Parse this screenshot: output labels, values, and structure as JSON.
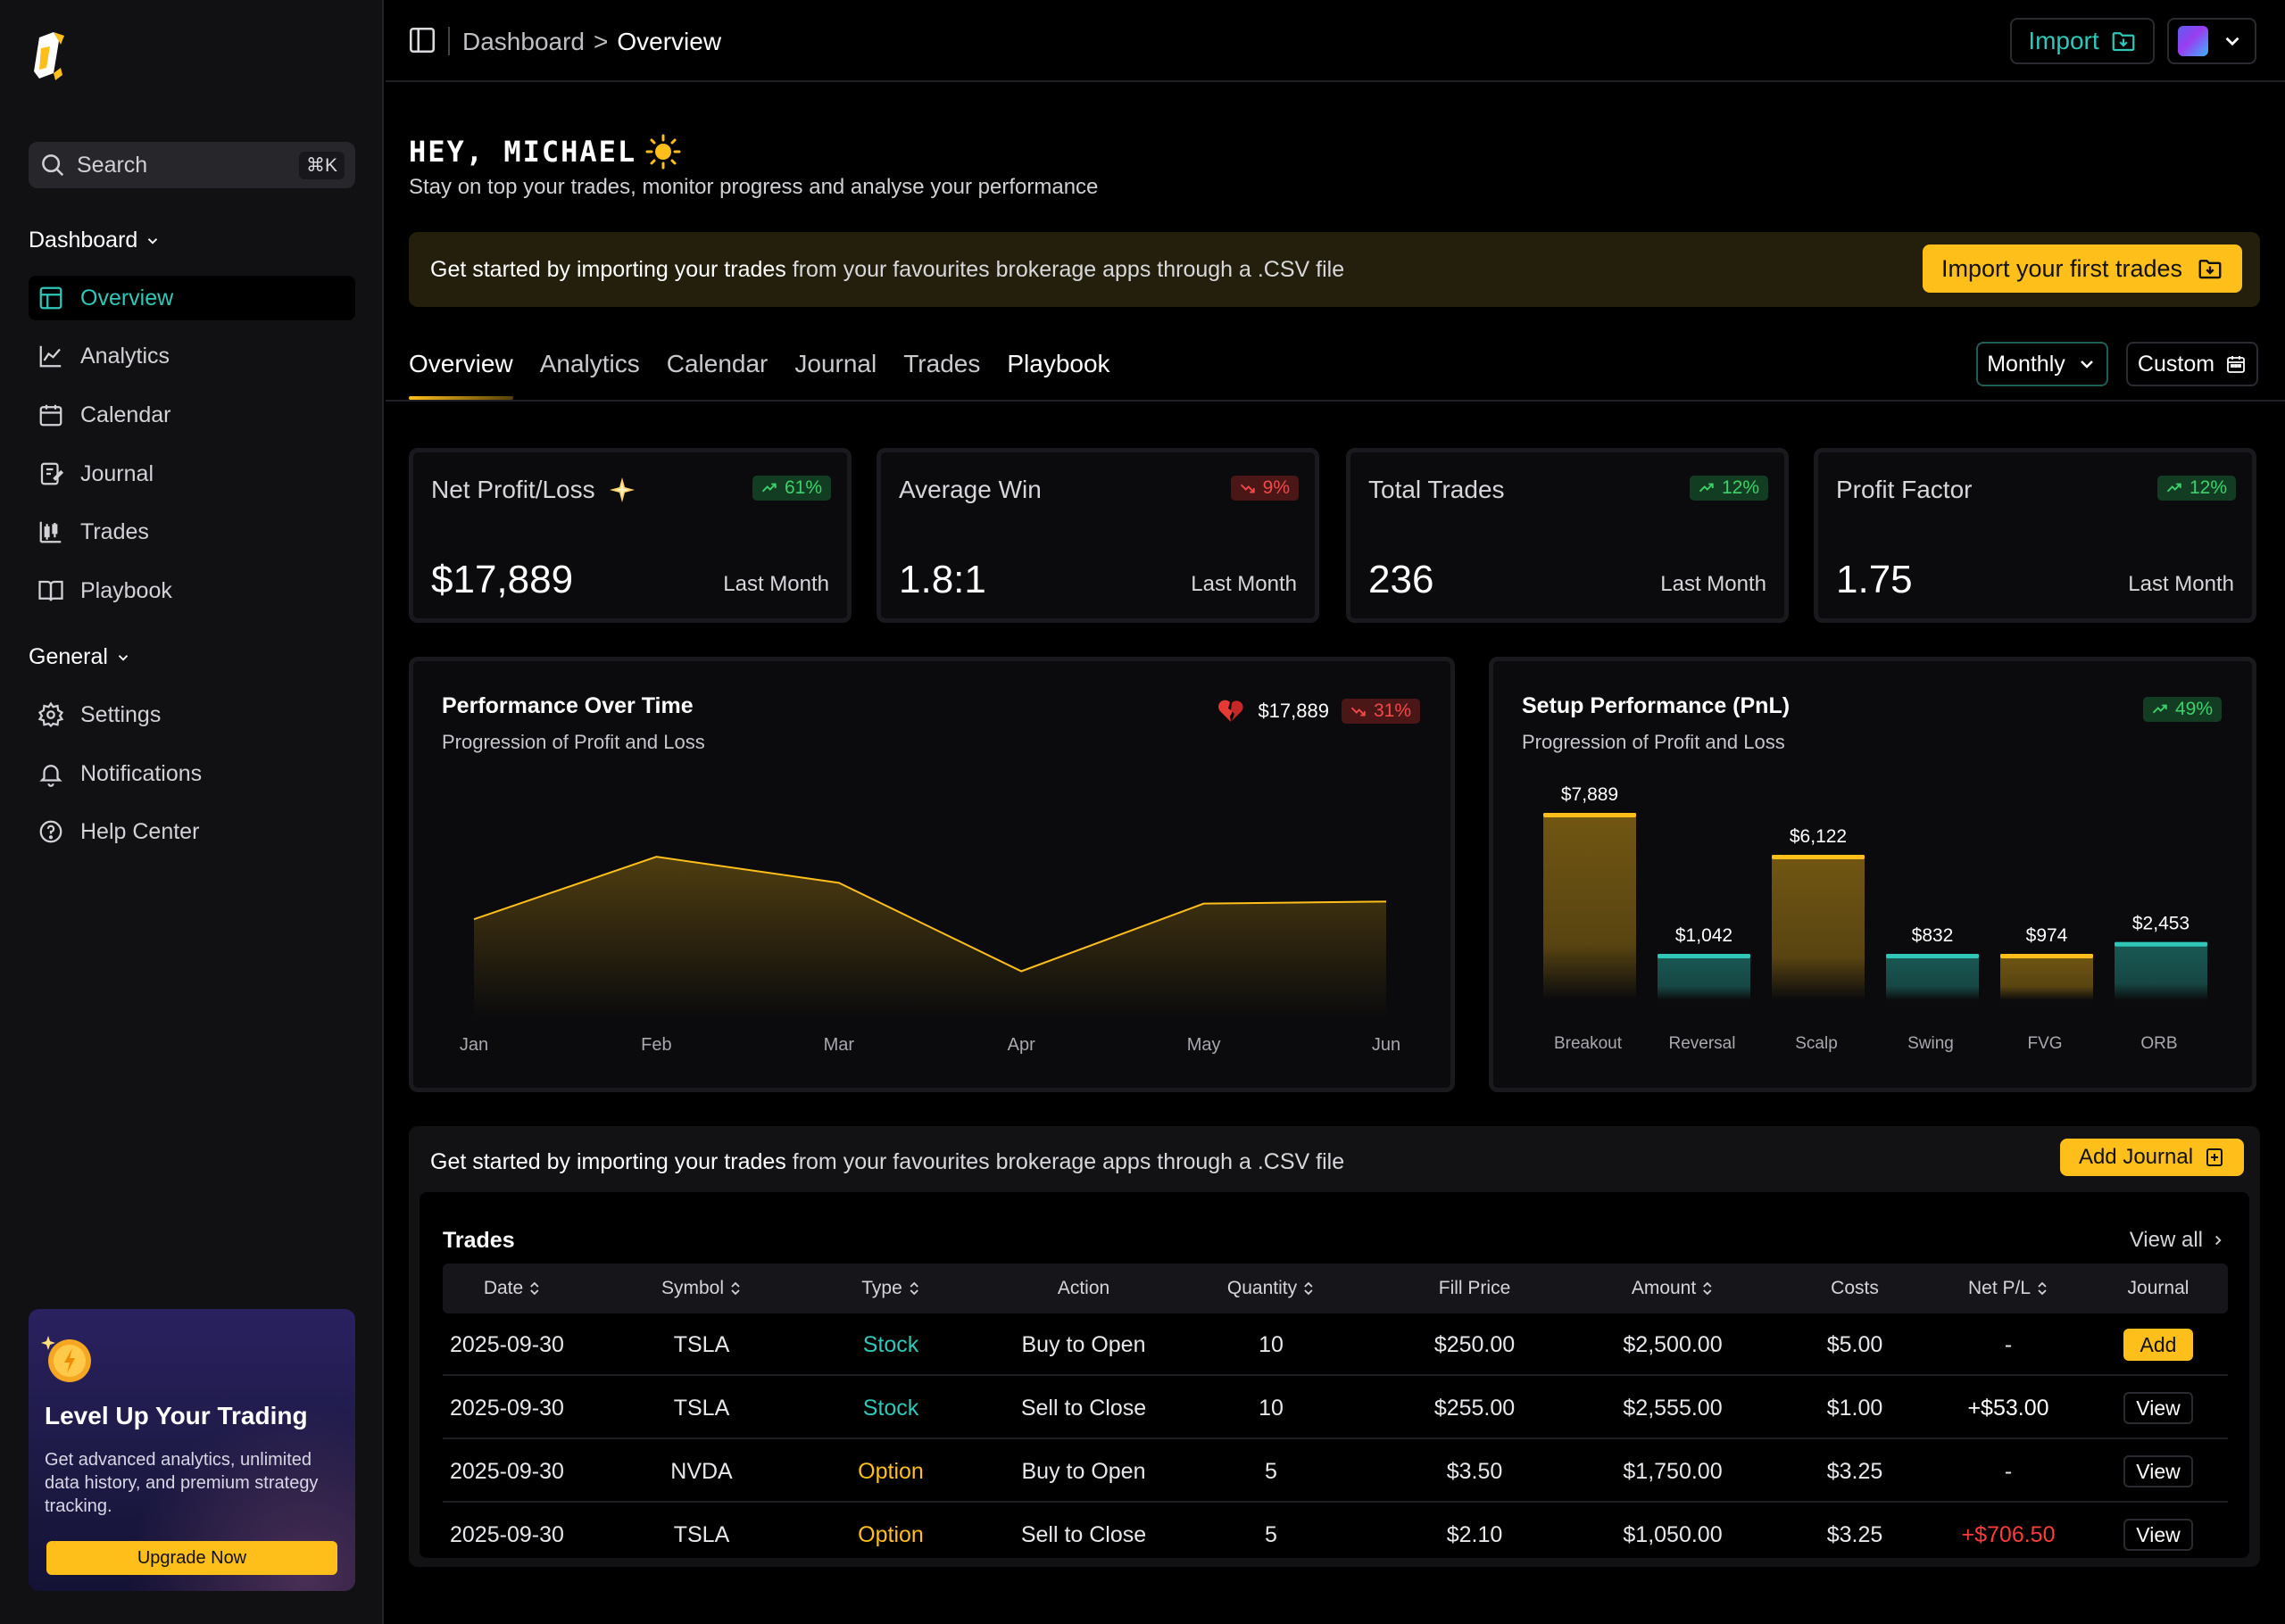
{
  "sidebar": {
    "search": {
      "placeholder": "Search",
      "shortcut": "⌘K"
    },
    "groups": [
      {
        "title": "Dashboard",
        "items": [
          {
            "label": "Overview",
            "icon": "layout-icon",
            "active": true
          },
          {
            "label": "Analytics",
            "icon": "line-chart-icon"
          },
          {
            "label": "Calendar",
            "icon": "calendar-icon"
          },
          {
            "label": "Journal",
            "icon": "journal-icon"
          },
          {
            "label": "Trades",
            "icon": "candlestick-icon"
          },
          {
            "label": "Playbook",
            "icon": "book-icon"
          }
        ]
      },
      {
        "title": "General",
        "items": [
          {
            "label": "Settings",
            "icon": "gear-icon"
          },
          {
            "label": "Notifications",
            "icon": "bell-icon"
          },
          {
            "label": "Help Center",
            "icon": "help-icon"
          }
        ]
      }
    ],
    "promo": {
      "title": "Level Up Your Trading",
      "description": "Get advanced analytics, unlimited data history, and premium strategy tracking.",
      "button": "Upgrade Now"
    }
  },
  "topbar": {
    "breadcrumb": [
      "Dashboard",
      ">",
      "Overview"
    ],
    "import_label": "Import"
  },
  "greeting": {
    "title": "HEY, MICHAEL",
    "subtitle": "Stay on top your trades, monitor progress and analyse your performance"
  },
  "banner": {
    "bold": "Get started by importing your trades",
    "rest": " from your favourites brokerage apps through a .CSV file",
    "button": "Import your first trades"
  },
  "tabs": [
    "Overview",
    "Analytics",
    "Calendar",
    "Journal",
    "Trades",
    "Playbook"
  ],
  "filters": {
    "period": "Monthly",
    "custom": "Custom"
  },
  "stats": [
    {
      "label": "Net Profit/Loss",
      "value": "$17,889",
      "period": "Last Month",
      "change": "61%",
      "trend": "up"
    },
    {
      "label": "Average Win",
      "value": "1.8:1",
      "period": "Last Month",
      "change": "9%",
      "trend": "down"
    },
    {
      "label": "Total Trades",
      "value": "236",
      "period": "Last Month",
      "change": "12%",
      "trend": "up"
    },
    {
      "label": "Profit Factor",
      "value": "1.75",
      "period": "Last Month",
      "change": "12%",
      "trend": "up"
    }
  ],
  "colors": {
    "accent_teal": "#2ec7b8",
    "accent_yellow": "#ffbf1a",
    "up": "#3fd16a",
    "down": "#f04a4a"
  },
  "chart_data": [
    {
      "type": "area",
      "title": "Performance Over Time",
      "subtitle": "Progression of Profit and Loss",
      "total": "$17,889",
      "change": "31%",
      "trend": "down",
      "categories": [
        "Jan",
        "Feb",
        "Mar",
        "Apr",
        "May",
        "Jun"
      ],
      "values": [
        9500,
        15500,
        13000,
        4500,
        11000,
        11200
      ],
      "ylim": [
        0,
        18000
      ],
      "grid": false
    },
    {
      "type": "bar",
      "title": "Setup Performance (PnL)",
      "subtitle": "Progression of Profit and Loss",
      "change": "49%",
      "trend": "up",
      "categories": [
        "Breakout",
        "Reversal",
        "Scalp",
        "Swing",
        "FVG",
        "ORB"
      ],
      "values": [
        7889,
        1042,
        6122,
        832,
        974,
        2453
      ],
      "labels": [
        "$7,889",
        "$1,042",
        "$6,122",
        "$832",
        "$974",
        "$2,453"
      ],
      "colors": [
        "#ffbf1a",
        "#2ec7b8",
        "#ffbf1a",
        "#2ec7b8",
        "#ffbf1a",
        "#2ec7b8"
      ],
      "grid": false
    }
  ],
  "trades_section": {
    "banner_bold": "Get started by importing your trades",
    "banner_rest": " from your favourites brokerage apps through a .CSV file",
    "add_journal": "Add Journal",
    "title": "Trades",
    "view_all": "View all",
    "columns": [
      "Date",
      "Symbol",
      "Type",
      "Action",
      "Quantity",
      "Fill Price",
      "Amount",
      "Costs",
      "Net P/L",
      "Journal"
    ],
    "rows": [
      {
        "date": "2025-09-30",
        "symbol": "TSLA",
        "type": "Stock",
        "action": "Buy to Open",
        "quantity": "10",
        "fill": "$250.00",
        "amount": "$2,500.00",
        "costs": "$5.00",
        "pnl": "-",
        "journal": "Add"
      },
      {
        "date": "2025-09-30",
        "symbol": "TSLA",
        "type": "Stock",
        "action": "Sell to Close",
        "quantity": "10",
        "fill": "$255.00",
        "amount": "$2,555.00",
        "costs": "$1.00",
        "pnl": "+$53.00",
        "journal": "View"
      },
      {
        "date": "2025-09-30",
        "symbol": "NVDA",
        "type": "Option",
        "action": "Buy to Open",
        "quantity": "5",
        "fill": "$3.50",
        "amount": "$1,750.00",
        "costs": "$3.25",
        "pnl": "-",
        "journal": "View"
      },
      {
        "date": "2025-09-30",
        "symbol": "TSLA",
        "type": "Option",
        "action": "Sell to Close",
        "quantity": "5",
        "fill": "$2.10",
        "amount": "$1,050.00",
        "costs": "$3.25",
        "pnl": "+$706.50",
        "journal": "View"
      }
    ]
  }
}
